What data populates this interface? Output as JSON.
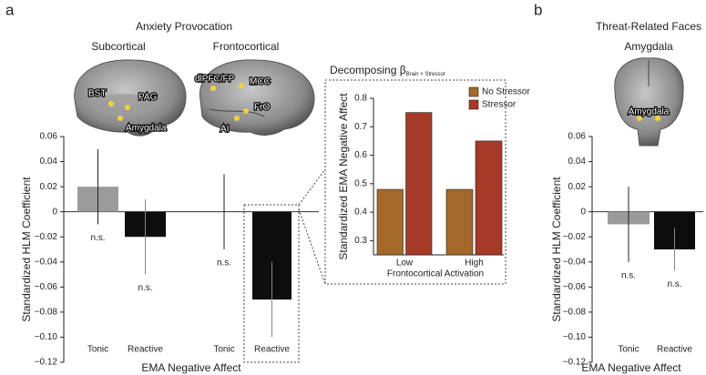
{
  "chart_data": [
    {
      "type": "bar",
      "panel_label": "a",
      "title": "Anxiety Provocation",
      "groups": [
        "Subcortical",
        "Frontocortical"
      ],
      "brain_labels": [
        "BST",
        "PAG",
        "Amygdala",
        "dlPFC/FP",
        "MCC",
        "FrO",
        "AI"
      ],
      "categories": [
        "Tonic",
        "Reactive",
        "Tonic",
        "Reactive"
      ],
      "values": [
        0.02,
        -0.02,
        0,
        -0.07
      ],
      "errors": [
        0.03,
        0.03,
        0.03,
        0.03
      ],
      "colors": [
        "#9b9b9b",
        "#0d0d0d",
        "#9b9b9b",
        "#0d0d0d"
      ],
      "annotations": [
        "n.s.",
        "n.s.",
        "n.s.",
        null
      ],
      "x_label": "EMA Negative Affect",
      "y_label": "Standardized HLM Coefficient",
      "ylim": [
        -0.12,
        0.06
      ],
      "yticks": [
        {
          "value": -0.12,
          "label": "−0.12"
        },
        {
          "value": -0.1,
          "label": "−0.10"
        },
        {
          "value": -0.08,
          "label": "−0.08"
        },
        {
          "value": -0.06,
          "label": "−0.06"
        },
        {
          "value": -0.04,
          "label": "−0.04"
        },
        {
          "value": -0.02,
          "label": "−0.02"
        },
        0,
        0.02,
        0.04,
        0.06
      ]
    },
    {
      "type": "bar",
      "title": "Decomposing β",
      "title_subscript": "Brain × Stressor",
      "categories": [
        "Low",
        "High"
      ],
      "series": [
        {
          "name": "No Stressor",
          "color": "#a4692a",
          "values": [
            0.48,
            0.48
          ]
        },
        {
          "name": "Stressor",
          "color": "#a63a26",
          "values": [
            0.75,
            0.65
          ]
        }
      ],
      "x_label": "Frontocortical Activation",
      "y_label": "Standardized EMA Negative Affect",
      "ylim": [
        0.25,
        0.8
      ],
      "yticks": [
        0.3,
        0.4,
        0.5,
        0.6,
        0.7,
        0.8
      ]
    },
    {
      "type": "bar",
      "panel_label": "b",
      "title": "Threat-Related Faces",
      "subtitle": "Amygdala",
      "brain_labels": [
        "Amygdala"
      ],
      "categories": [
        "Tonic",
        "Reactive"
      ],
      "values": [
        -0.01,
        -0.03
      ],
      "errors": [
        0.03,
        0.017
      ],
      "colors": [
        "#9b9b9b",
        "#0d0d0d"
      ],
      "annotations": [
        "n.s.",
        "n.s."
      ],
      "x_label": "EMA Negative Affect",
      "y_label": "Standardized HLM Coefficient",
      "ylim": [
        -0.12,
        0.06
      ],
      "yticks": [
        {
          "value": -0.12,
          "label": "−0.12"
        },
        {
          "value": -0.1,
          "label": "−0.10"
        },
        {
          "value": -0.08,
          "label": "−0.08"
        },
        {
          "value": -0.06,
          "label": "−0.06"
        },
        {
          "value": -0.04,
          "label": "−0.04"
        },
        {
          "value": -0.02,
          "label": "−0.02"
        },
        0,
        0.02,
        0.04,
        0.06
      ]
    }
  ]
}
